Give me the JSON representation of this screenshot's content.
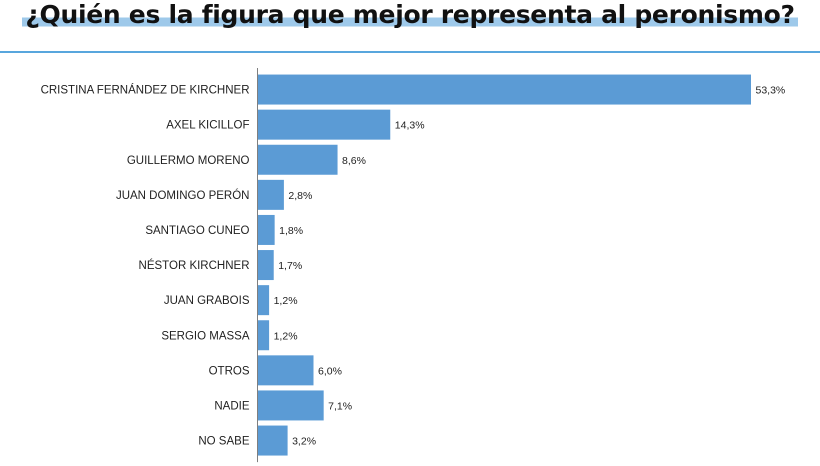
{
  "title": "¿Quién es la figura que mejor representa al peronismo?",
  "colors": {
    "bar": "#5b9bd5",
    "axis": "#7f7f7f",
    "rule": "#58a6dd"
  },
  "chart_data": {
    "type": "bar",
    "orientation": "horizontal",
    "categories": [
      "CRISTINA FERNÁNDEZ DE KIRCHNER",
      "AXEL KICILLOF",
      "GUILLERMO MORENO",
      "JUAN DOMINGO PERÓN",
      "SANTIAGO CUNEO",
      "NÉSTOR KIRCHNER",
      "JUAN GRABOIS",
      "SERGIO MASSA",
      "OTROS",
      "NADIE",
      "NO SABE"
    ],
    "values": [
      53.3,
      14.3,
      8.6,
      2.8,
      1.8,
      1.7,
      1.2,
      1.2,
      6.0,
      7.1,
      3.2
    ],
    "value_labels": [
      "53,3%",
      "14,3%",
      "8,6%",
      "2,8%",
      "1,8%",
      "1,7%",
      "1,2%",
      "1,2%",
      "6,0%",
      "7,1%",
      "3,2%"
    ],
    "xlim": [
      0,
      53.3
    ],
    "grid": false,
    "legend": "none"
  }
}
